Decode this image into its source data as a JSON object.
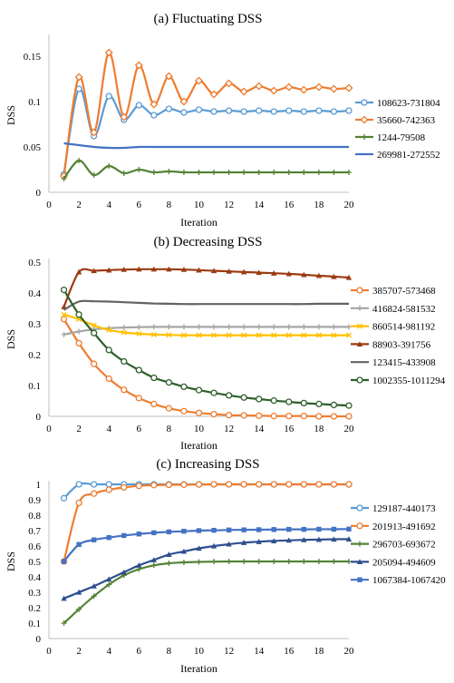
{
  "chart_data": [
    {
      "type": "line",
      "title": "(a) Fluctuating DSS",
      "xlabel": "Iteration",
      "ylabel": "DSS",
      "xlim": [
        0,
        20
      ],
      "ylim": [
        0,
        0.17
      ],
      "xticks": [
        0,
        2,
        4,
        6,
        8,
        10,
        12,
        14,
        16,
        18,
        20
      ],
      "yticks": [
        0,
        0.05,
        0.1,
        0.15
      ],
      "ytick_labels": [
        "0",
        "0.05",
        "0.1",
        "0.15"
      ],
      "grid": "none",
      "legend": "right",
      "x": [
        1,
        2,
        3,
        4,
        5,
        6,
        7,
        8,
        9,
        10,
        11,
        12,
        13,
        14,
        15,
        16,
        17,
        18,
        19,
        20
      ],
      "series": [
        {
          "name": "108623-731804",
          "color": "#5b9bd5",
          "marker": "circle",
          "values": [
            0.02,
            0.114,
            0.062,
            0.106,
            0.08,
            0.096,
            0.085,
            0.092,
            0.088,
            0.091,
            0.089,
            0.09,
            0.089,
            0.09,
            0.089,
            0.09,
            0.089,
            0.09,
            0.089,
            0.09
          ]
        },
        {
          "name": "35660-742363",
          "color": "#ed7d31",
          "marker": "diamond",
          "values": [
            0.018,
            0.127,
            0.066,
            0.154,
            0.083,
            0.14,
            0.097,
            0.128,
            0.1,
            0.123,
            0.108,
            0.12,
            0.111,
            0.117,
            0.112,
            0.116,
            0.113,
            0.116,
            0.114,
            0.115
          ]
        },
        {
          "name": "1244-79508",
          "color": "#548235",
          "marker": "plus",
          "values": [
            0.015,
            0.035,
            0.019,
            0.029,
            0.021,
            0.025,
            0.022,
            0.023,
            0.022,
            0.022,
            0.022,
            0.022,
            0.022,
            0.022,
            0.022,
            0.022,
            0.022,
            0.022,
            0.022,
            0.022
          ]
        },
        {
          "name": "269981-272552",
          "color": "#4472c4",
          "marker": "none",
          "values": [
            0.054,
            0.052,
            0.05,
            0.049,
            0.049,
            0.05,
            0.05,
            0.05,
            0.05,
            0.05,
            0.05,
            0.05,
            0.05,
            0.05,
            0.05,
            0.05,
            0.05,
            0.05,
            0.05,
            0.05
          ]
        }
      ]
    },
    {
      "type": "line",
      "title": "(b) Decreasing DSS",
      "xlabel": "Iteration",
      "ylabel": "DSS",
      "xlim": [
        0,
        20
      ],
      "ylim": [
        0,
        0.5
      ],
      "xticks": [
        0,
        2,
        4,
        6,
        8,
        10,
        12,
        14,
        16,
        18,
        20
      ],
      "yticks": [
        0,
        0.1,
        0.2,
        0.3,
        0.4,
        0.5
      ],
      "ytick_labels": [
        "0",
        "0.1",
        "0.2",
        "0.3",
        "0.4",
        "0.5"
      ],
      "grid": "none",
      "legend": "right",
      "x": [
        1,
        2,
        3,
        4,
        5,
        6,
        7,
        8,
        9,
        10,
        11,
        12,
        13,
        14,
        15,
        16,
        17,
        18,
        19,
        20
      ],
      "series": [
        {
          "name": "385707-573468",
          "color": "#ed7d31",
          "marker": "circle",
          "values": [
            0.315,
            0.237,
            0.17,
            0.122,
            0.086,
            0.059,
            0.04,
            0.026,
            0.017,
            0.011,
            0.007,
            0.004,
            0.003,
            0.002,
            0.001,
            0.001,
            0.001,
            0.0,
            0.0,
            0.0
          ]
        },
        {
          "name": "416824-581532",
          "color": "#a5a5a5",
          "marker": "plus",
          "values": [
            0.265,
            0.275,
            0.282,
            0.286,
            0.288,
            0.289,
            0.29,
            0.29,
            0.29,
            0.29,
            0.29,
            0.29,
            0.29,
            0.29,
            0.29,
            0.29,
            0.29,
            0.29,
            0.29,
            0.29
          ]
        },
        {
          "name": "860514-981192",
          "color": "#ffc000",
          "marker": "x",
          "values": [
            0.33,
            0.315,
            0.295,
            0.28,
            0.272,
            0.268,
            0.265,
            0.264,
            0.263,
            0.263,
            0.263,
            0.263,
            0.263,
            0.263,
            0.263,
            0.263,
            0.263,
            0.263,
            0.263,
            0.263
          ]
        },
        {
          "name": "88903-391756",
          "color": "#9c3a10",
          "marker": "triangle",
          "values": [
            0.355,
            0.468,
            0.472,
            0.474,
            0.476,
            0.477,
            0.477,
            0.477,
            0.476,
            0.474,
            0.472,
            0.47,
            0.468,
            0.466,
            0.464,
            0.462,
            0.459,
            0.456,
            0.453,
            0.45
          ]
        },
        {
          "name": "123415-433908",
          "color": "#636363",
          "marker": "none",
          "values": [
            0.345,
            0.372,
            0.373,
            0.372,
            0.37,
            0.368,
            0.366,
            0.365,
            0.364,
            0.364,
            0.364,
            0.364,
            0.364,
            0.364,
            0.364,
            0.364,
            0.364,
            0.365,
            0.365,
            0.365
          ]
        },
        {
          "name": "1002355-1011294",
          "color": "#2f5f2b",
          "marker": "circle",
          "values": [
            0.41,
            0.33,
            0.27,
            0.215,
            0.178,
            0.15,
            0.125,
            0.11,
            0.096,
            0.085,
            0.076,
            0.068,
            0.061,
            0.056,
            0.051,
            0.047,
            0.043,
            0.04,
            0.037,
            0.035
          ]
        }
      ]
    },
    {
      "type": "line",
      "title": "(c) Increasing DSS",
      "xlabel": "Iteration",
      "ylabel": "DSS",
      "xlim": [
        0,
        20
      ],
      "ylim": [
        0,
        1
      ],
      "xticks": [
        0,
        2,
        4,
        6,
        8,
        10,
        12,
        14,
        16,
        18,
        20
      ],
      "yticks": [
        0,
        0.1,
        0.2,
        0.3,
        0.4,
        0.5,
        0.6,
        0.7,
        0.8,
        0.9,
        1
      ],
      "ytick_labels": [
        "0",
        "0.1",
        "0.2",
        "0.3",
        "0.4",
        "0.5",
        "0.6",
        "0.7",
        "0.8",
        "0.9",
        "1"
      ],
      "grid": "none",
      "legend": "right",
      "x": [
        1,
        2,
        3,
        4,
        5,
        6,
        7,
        8,
        9,
        10,
        11,
        12,
        13,
        14,
        15,
        16,
        17,
        18,
        19,
        20
      ],
      "series": [
        {
          "name": "129187-440173",
          "color": "#5b9bd5",
          "marker": "circle",
          "values": [
            0.91,
            1.0,
            1.0,
            1.0,
            1.0,
            1.0,
            1.0,
            1.0,
            1.0,
            1.0,
            1.0,
            1.0,
            1.0,
            1.0,
            1.0,
            1.0,
            1.0,
            1.0,
            1.0,
            1.0
          ]
        },
        {
          "name": "201913-491692",
          "color": "#ed7d31",
          "marker": "circle",
          "values": [
            0.5,
            0.88,
            0.94,
            0.965,
            0.98,
            0.99,
            0.995,
            0.997,
            0.998,
            0.999,
            1.0,
            1.0,
            1.0,
            1.0,
            1.0,
            1.0,
            1.0,
            1.0,
            1.0,
            1.0
          ]
        },
        {
          "name": "296703-693672",
          "color": "#548235",
          "marker": "plus",
          "values": [
            0.1,
            0.19,
            0.275,
            0.35,
            0.41,
            0.45,
            0.475,
            0.488,
            0.494,
            0.497,
            0.499,
            0.5,
            0.5,
            0.5,
            0.5,
            0.5,
            0.5,
            0.5,
            0.5,
            0.5
          ]
        },
        {
          "name": "205094-494609",
          "color": "#2e4f8f",
          "marker": "triangle",
          "values": [
            0.26,
            0.3,
            0.34,
            0.385,
            0.43,
            0.475,
            0.51,
            0.545,
            0.565,
            0.585,
            0.6,
            0.612,
            0.622,
            0.628,
            0.633,
            0.637,
            0.64,
            0.642,
            0.644,
            0.645
          ]
        },
        {
          "name": "1067384-1067420",
          "color": "#4472c4",
          "marker": "square",
          "values": [
            0.5,
            0.61,
            0.64,
            0.655,
            0.668,
            0.678,
            0.686,
            0.692,
            0.696,
            0.7,
            0.702,
            0.704,
            0.705,
            0.706,
            0.707,
            0.708,
            0.708,
            0.709,
            0.709,
            0.71
          ]
        }
      ]
    }
  ]
}
